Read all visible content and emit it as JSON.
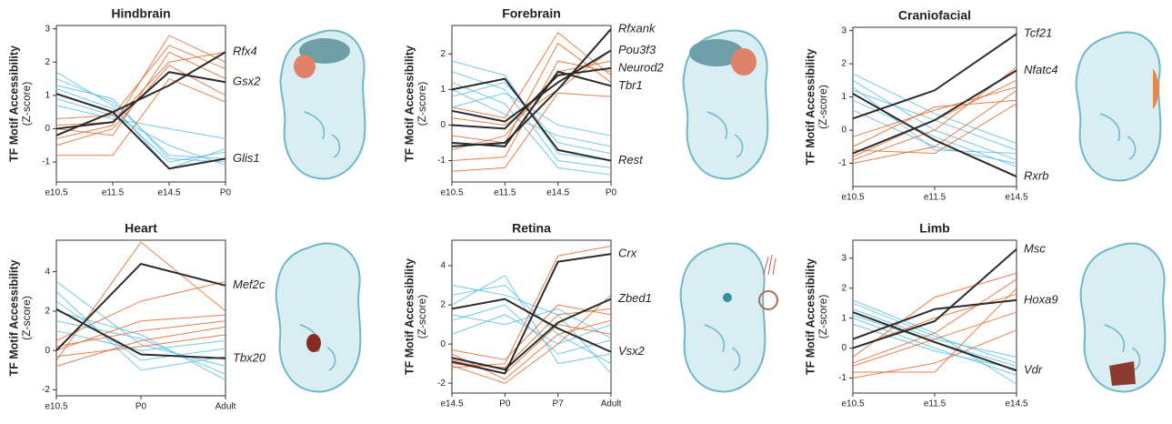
{
  "chart_data": [
    {
      "type": "line",
      "title": "Hindbrain",
      "ylabel": "TF Motif Accessibility",
      "ylabel_sub": "(Z-score)",
      "categories": [
        "e10.5",
        "e11.5",
        "e14.5",
        "P0"
      ],
      "ylim": [
        -1.6,
        3.1
      ],
      "yticks": [
        -1,
        0,
        1,
        2,
        3
      ],
      "series": [
        {
          "color": "#5bc0e8",
          "values": [
            1.5,
            0.8,
            -0.8,
            -0.9
          ]
        },
        {
          "color": "#5bc0e8",
          "values": [
            1.2,
            0.6,
            -1.0,
            -0.7
          ]
        },
        {
          "color": "#5bc0e8",
          "values": [
            0.9,
            0.4,
            -0.5,
            -1.1
          ]
        },
        {
          "color": "#5bc0e8",
          "values": [
            1.7,
            0.7,
            -1.2,
            -0.6
          ]
        },
        {
          "color": "#5bc0e8",
          "values": [
            0.7,
            0.3,
            0.0,
            -0.3
          ]
        },
        {
          "color": "#5bc0e8",
          "values": [
            1.3,
            0.9,
            -0.9,
            -1.0
          ]
        },
        {
          "color": "#e8672a",
          "values": [
            -0.3,
            0.1,
            2.8,
            2.0
          ]
        },
        {
          "color": "#e8672a",
          "values": [
            0.0,
            -0.2,
            2.3,
            1.5
          ]
        },
        {
          "color": "#e8672a",
          "values": [
            -0.5,
            0.0,
            1.9,
            1.0
          ]
        },
        {
          "color": "#e8672a",
          "values": [
            0.3,
            0.4,
            2.5,
            1.8
          ]
        },
        {
          "color": "#e8672a",
          "values": [
            -0.8,
            -0.8,
            1.5,
            0.8
          ]
        },
        {
          "color": "#e8672a",
          "values": [
            0.1,
            0.2,
            2.0,
            2.3
          ]
        },
        {
          "name": "Rfx4",
          "color": "#2b2b2b",
          "values": [
            -0.2,
            0.5,
            1.3,
            2.3
          ]
        },
        {
          "name": "Gsx2",
          "color": "#2b2b2b",
          "values": [
            0.0,
            0.2,
            1.7,
            1.4
          ]
        },
        {
          "name": "Glis1",
          "color": "#2b2b2b",
          "values": [
            1.05,
            0.5,
            -1.2,
            -0.9
          ]
        }
      ]
    },
    {
      "type": "line",
      "title": "Forebrain",
      "ylabel": "TF Motif Accessibility",
      "ylabel_sub": "(Z-score)",
      "categories": [
        "e10.5",
        "e11.5",
        "e14.5",
        "P0"
      ],
      "ylim": [
        -1.6,
        2.8
      ],
      "yticks": [
        -1,
        0,
        1,
        2
      ],
      "series": [
        {
          "color": "#5bc0e8",
          "values": [
            1.5,
            1.0,
            -1.0,
            -1.2
          ]
        },
        {
          "color": "#5bc0e8",
          "values": [
            0.8,
            1.2,
            -0.5,
            -0.8
          ]
        },
        {
          "color": "#5bc0e8",
          "values": [
            1.2,
            0.6,
            -1.2,
            -1.4
          ]
        },
        {
          "color": "#5bc0e8",
          "values": [
            0.5,
            0.9,
            0.0,
            -0.3
          ]
        },
        {
          "color": "#5bc0e8",
          "values": [
            1.8,
            1.4,
            -0.8,
            -1.0
          ]
        },
        {
          "color": "#5bc0e8",
          "values": [
            1.0,
            0.3,
            -0.3,
            -0.6
          ]
        },
        {
          "color": "#e8672a",
          "values": [
            -1.0,
            -0.9,
            1.8,
            1.5
          ]
        },
        {
          "color": "#e8672a",
          "values": [
            -0.3,
            -0.5,
            2.3,
            1.2
          ]
        },
        {
          "color": "#e8672a",
          "values": [
            0.2,
            0.0,
            1.0,
            2.1
          ]
        },
        {
          "color": "#e8672a",
          "values": [
            -1.3,
            -1.2,
            0.9,
            0.8
          ]
        },
        {
          "color": "#e8672a",
          "values": [
            -0.7,
            -0.3,
            1.5,
            1.8
          ]
        },
        {
          "color": "#e8672a",
          "values": [
            0.5,
            0.2,
            2.6,
            1.4
          ]
        },
        {
          "name": "Rfxank",
          "color": "#2b2b2b",
          "values": [
            -0.6,
            -0.5,
            1.0,
            2.7
          ]
        },
        {
          "name": "Pou3f3",
          "color": "#2b2b2b",
          "values": [
            0.4,
            0.1,
            1.2,
            2.1
          ]
        },
        {
          "name": "Neurod2",
          "color": "#2b2b2b",
          "values": [
            0.0,
            -0.1,
            1.4,
            1.6
          ]
        },
        {
          "name": "Tbr1",
          "color": "#2b2b2b",
          "values": [
            -0.5,
            -0.6,
            1.5,
            1.1
          ]
        },
        {
          "name": "Rest",
          "color": "#2b2b2b",
          "values": [
            1.0,
            1.3,
            -0.7,
            -1.0
          ]
        }
      ]
    },
    {
      "type": "line",
      "title": "Craniofacial",
      "ylabel": "TF Motif Accessibility",
      "ylabel_sub": "(Z-score)",
      "categories": [
        "e10.5",
        "e11.5",
        "e14.5"
      ],
      "ylim": [
        -1.7,
        3.1
      ],
      "yticks": [
        -1,
        0,
        1,
        2,
        3
      ],
      "series": [
        {
          "color": "#5bc0e8",
          "values": [
            1.5,
            0.0,
            -0.9
          ]
        },
        {
          "color": "#5bc0e8",
          "values": [
            1.2,
            0.3,
            -0.6
          ]
        },
        {
          "color": "#5bc0e8",
          "values": [
            0.9,
            -0.2,
            -1.1
          ]
        },
        {
          "color": "#5bc0e8",
          "values": [
            1.7,
            0.5,
            -0.4
          ]
        },
        {
          "color": "#5bc0e8",
          "values": [
            0.6,
            -0.5,
            -1.0
          ]
        },
        {
          "color": "#5bc0e8",
          "values": [
            1.3,
            -0.6,
            -0.7
          ]
        },
        {
          "color": "#e8672a",
          "values": [
            -0.8,
            0.3,
            1.5
          ]
        },
        {
          "color": "#e8672a",
          "values": [
            -1.0,
            -0.5,
            1.2
          ]
        },
        {
          "color": "#e8672a",
          "values": [
            -0.5,
            0.7,
            0.9
          ]
        },
        {
          "color": "#e8672a",
          "values": [
            -0.9,
            0.0,
            1.9
          ]
        },
        {
          "color": "#e8672a",
          "values": [
            -0.2,
            0.6,
            1.3
          ]
        },
        {
          "color": "#e8672a",
          "values": [
            -0.6,
            -0.7,
            0.8
          ]
        },
        {
          "name": "Tcf21",
          "color": "#2b2b2b",
          "values": [
            0.35,
            1.2,
            2.9
          ]
        },
        {
          "name": "Nfatc4",
          "color": "#2b2b2b",
          "values": [
            -0.7,
            0.3,
            1.8
          ]
        },
        {
          "name": "Rxrb",
          "color": "#2b2b2b",
          "values": [
            1.1,
            -0.3,
            -1.4
          ]
        }
      ]
    },
    {
      "type": "line",
      "title": "Heart",
      "ylabel": "TF Motif Accessibility",
      "ylabel_sub": "(Z-score)",
      "categories": [
        "e10.5",
        "P0",
        "Adult"
      ],
      "ylim": [
        -2.3,
        5.6
      ],
      "yticks": [
        -2,
        0,
        2,
        4
      ],
      "series": [
        {
          "color": "#5bc0e8",
          "values": [
            3.5,
            0.3,
            -0.8
          ]
        },
        {
          "color": "#5bc0e8",
          "values": [
            2.5,
            -0.5,
            0.1
          ]
        },
        {
          "color": "#5bc0e8",
          "values": [
            1.5,
            0.6,
            -1.2
          ]
        },
        {
          "color": "#5bc0e8",
          "values": [
            3.0,
            -1.0,
            -0.3
          ]
        },
        {
          "color": "#5bc0e8",
          "values": [
            1.0,
            0.0,
            0.5
          ]
        },
        {
          "color": "#5bc0e8",
          "values": [
            2.0,
            0.8,
            -1.5
          ]
        },
        {
          "color": "#e8672a",
          "values": [
            -0.5,
            5.5,
            2.0
          ]
        },
        {
          "color": "#e8672a",
          "values": [
            0.0,
            1.5,
            1.8
          ]
        },
        {
          "color": "#e8672a",
          "values": [
            -0.8,
            0.5,
            1.2
          ]
        },
        {
          "color": "#e8672a",
          "values": [
            0.5,
            2.5,
            3.5
          ]
        },
        {
          "color": "#e8672a",
          "values": [
            -0.3,
            0.2,
            0.8
          ]
        },
        {
          "color": "#e8672a",
          "values": [
            0.2,
            1.0,
            1.5
          ]
        },
        {
          "name": "Mef2c",
          "color": "#2b2b2b",
          "values": [
            0.0,
            4.4,
            3.3
          ]
        },
        {
          "name": "Tbx20",
          "color": "#2b2b2b",
          "values": [
            2.1,
            -0.2,
            -0.4
          ]
        }
      ]
    },
    {
      "type": "line",
      "title": "Retina",
      "ylabel": "TF Motif Accessibility",
      "ylabel_sub": "(Z-score)",
      "categories": [
        "e14.5",
        "P0",
        "P7",
        "Adult"
      ],
      "ylim": [
        -2.5,
        5.3
      ],
      "yticks": [
        -2,
        0,
        2,
        4
      ],
      "series": [
        {
          "color": "#5bc0e8",
          "values": [
            2.5,
            3.0,
            0.5,
            -1.0
          ]
        },
        {
          "color": "#5bc0e8",
          "values": [
            1.2,
            2.0,
            -0.5,
            0.2
          ]
        },
        {
          "color": "#5bc0e8",
          "values": [
            3.0,
            2.5,
            1.5,
            -1.5
          ]
        },
        {
          "color": "#5bc0e8",
          "values": [
            0.5,
            1.5,
            0.0,
            1.0
          ]
        },
        {
          "color": "#5bc0e8",
          "values": [
            2.0,
            3.5,
            -1.0,
            -0.5
          ]
        },
        {
          "color": "#5bc0e8",
          "values": [
            1.5,
            1.0,
            1.8,
            0.3
          ]
        },
        {
          "color": "#e8672a",
          "values": [
            -1.0,
            -1.2,
            1.5,
            1.8
          ]
        },
        {
          "color": "#e8672a",
          "values": [
            -0.5,
            -1.8,
            0.5,
            1.2
          ]
        },
        {
          "color": "#e8672a",
          "values": [
            -1.2,
            -1.0,
            4.5,
            5.0
          ]
        },
        {
          "color": "#e8672a",
          "values": [
            -0.8,
            -1.5,
            1.0,
            0.5
          ]
        },
        {
          "color": "#e8672a",
          "values": [
            -0.3,
            -0.8,
            2.0,
            1.5
          ]
        },
        {
          "color": "#e8672a",
          "values": [
            -1.1,
            -2.0,
            0.0,
            2.5
          ]
        },
        {
          "name": "Crx",
          "color": "#2b2b2b",
          "values": [
            -0.9,
            -1.5,
            4.2,
            4.6
          ]
        },
        {
          "name": "Zbed1",
          "color": "#2b2b2b",
          "values": [
            -0.7,
            -1.3,
            1.1,
            2.3
          ]
        },
        {
          "name": "Vsx2",
          "color": "#2b2b2b",
          "values": [
            1.8,
            2.3,
            0.8,
            -0.4
          ]
        }
      ]
    },
    {
      "type": "line",
      "title": "Limb",
      "ylabel": "TF Motif Accessibility",
      "ylabel_sub": "(Z-score)",
      "categories": [
        "e10.5",
        "e11.5",
        "e14.5"
      ],
      "ylim": [
        -1.5,
        3.6
      ],
      "yticks": [
        -1,
        0,
        1,
        2,
        3
      ],
      "series": [
        {
          "color": "#5bc0e8",
          "values": [
            1.5,
            0.4,
            -0.5
          ]
        },
        {
          "color": "#5bc0e8",
          "values": [
            1.0,
            0.0,
            -0.9
          ]
        },
        {
          "color": "#5bc0e8",
          "values": [
            1.3,
            0.3,
            -0.3
          ]
        },
        {
          "color": "#5bc0e8",
          "values": [
            0.8,
            -0.1,
            -0.7
          ]
        },
        {
          "color": "#5bc0e8",
          "values": [
            1.6,
            0.5,
            -1.2
          ]
        },
        {
          "color": "#5bc0e8",
          "values": [
            1.1,
            0.2,
            -0.6
          ]
        },
        {
          "color": "#e8672a",
          "values": [
            -0.8,
            -0.8,
            2.0
          ]
        },
        {
          "color": "#e8672a",
          "values": [
            -0.5,
            0.5,
            2.3
          ]
        },
        {
          "color": "#e8672a",
          "values": [
            0.0,
            1.0,
            1.8
          ]
        },
        {
          "color": "#e8672a",
          "values": [
            -1.0,
            -0.5,
            0.6
          ]
        },
        {
          "color": "#e8672a",
          "values": [
            -0.3,
            1.7,
            2.5
          ]
        },
        {
          "color": "#e8672a",
          "values": [
            -0.6,
            0.3,
            1.2
          ]
        },
        {
          "name": "Msc",
          "color": "#2b2b2b",
          "values": [
            0.0,
            0.9,
            3.3
          ]
        },
        {
          "name": "Hoxa9",
          "color": "#2b2b2b",
          "values": [
            0.3,
            1.3,
            1.6
          ]
        },
        {
          "name": "Vdr",
          "color": "#2b2b2b",
          "values": [
            1.2,
            0.2,
            -0.75
          ]
        }
      ]
    }
  ]
}
